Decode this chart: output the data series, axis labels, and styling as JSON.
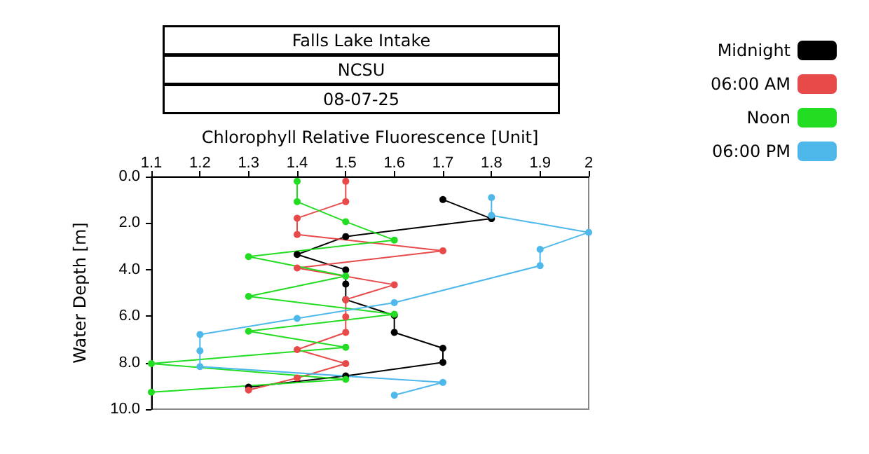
{
  "chart_data": {
    "type": "line",
    "title": "Falls Lake Intake",
    "subtitle": "NCSU",
    "annotations": [
      "08-07-25"
    ],
    "xlabel": "Chlorophyll Relative Fluorescence [Unit]",
    "ylabel": "Water Depth [m]",
    "xlim": [
      1.1,
      2
    ],
    "xticks": [
      1.1,
      1.2,
      1.3,
      1.4,
      1.5,
      1.6,
      1.7,
      1.8,
      1.9,
      2
    ],
    "ylim": [
      10,
      0
    ],
    "yticks": [
      {
        "value": 0,
        "label": "0.0"
      },
      {
        "value": 2,
        "label": "2.0"
      },
      {
        "value": 4,
        "label": "4.0"
      },
      {
        "value": 6,
        "label": "6.0"
      },
      {
        "value": 8,
        "label": "8.0"
      },
      {
        "value": 10,
        "label": "10.0"
      }
    ],
    "grid": false,
    "legend": "top right",
    "marker": "circle",
    "line_style": "solid",
    "series": [
      {
        "name": "Midnight",
        "color": "#000000",
        "x": [
          1.7,
          1.8,
          1.5,
          1.4,
          1.5,
          1.5,
          1.5,
          1.6,
          1.6,
          1.7,
          1.7,
          1.5,
          1.3
        ],
        "values": [
          0.99,
          1.81,
          2.58,
          3.35,
          4.01,
          4.62,
          5.29,
          5.97,
          6.7,
          7.38,
          7.99,
          8.57,
          9.05
        ]
      },
      {
        "name": "06:00 AM",
        "color": "#e84a4a",
        "x": [
          1.5,
          1.5,
          1.4,
          1.4,
          1.7,
          1.4,
          1.6,
          1.5,
          1.5,
          1.5,
          1.4,
          1.5,
          1.4,
          1.3
        ],
        "values": [
          0.2,
          1.08,
          1.79,
          2.49,
          3.19,
          3.93,
          4.65,
          5.29,
          6.03,
          6.7,
          7.44,
          8.04,
          8.66,
          9.18
        ]
      },
      {
        "name": "Noon",
        "color": "#22dd22",
        "x": [
          1.4,
          1.4,
          1.5,
          1.6,
          1.3,
          1.5,
          1.3,
          1.6,
          1.3,
          1.5,
          1.1,
          1.5,
          1.1
        ],
        "values": [
          0.2,
          1.08,
          1.94,
          2.73,
          3.44,
          4.28,
          5.15,
          5.92,
          6.65,
          7.34,
          8.04,
          8.72,
          9.27
        ]
      },
      {
        "name": "06:00 PM",
        "color": "#4fb8ea",
        "x": [
          1.8,
          1.8,
          2,
          1.9,
          1.9,
          1.6,
          1.4,
          1.2,
          1.2,
          1.2,
          1.7,
          1.6
        ],
        "values": [
          0.9,
          1.67,
          2.4,
          3.13,
          3.83,
          5.42,
          6.1,
          6.79,
          7.49,
          8.17,
          8.85,
          9.4
        ]
      }
    ]
  }
}
